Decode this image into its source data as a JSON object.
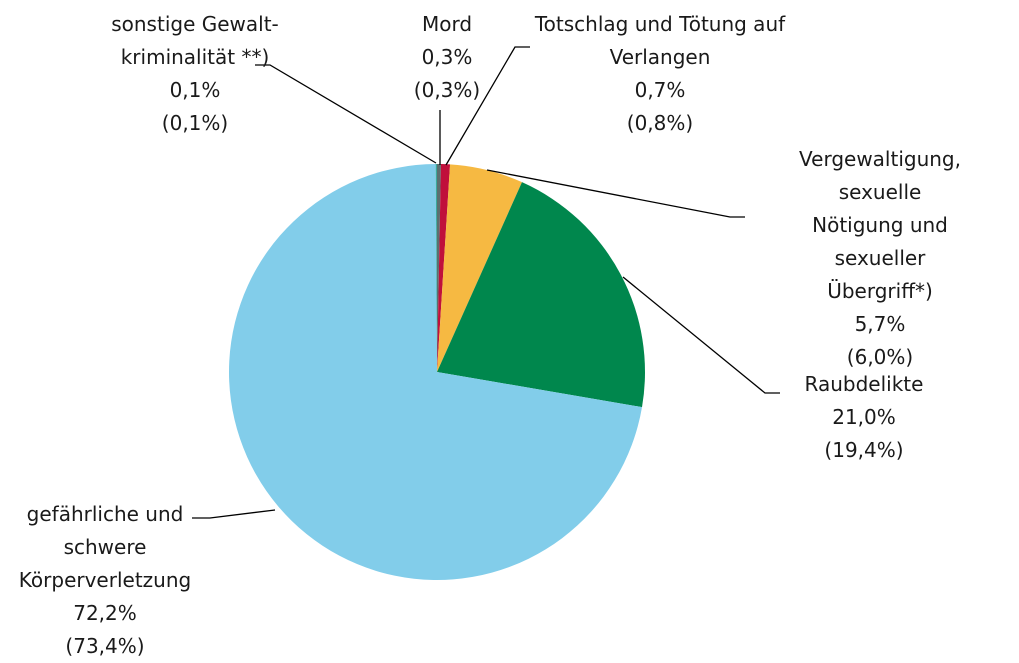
{
  "chart_data": {
    "type": "pie",
    "categories": [
      "Mord",
      "Totschlag und Tötung auf\nVerlangen",
      "Vergewaltigung,\nsexuelle Nötigung und\nsexueller Übergriff*)",
      "Raubdelikte",
      "gefährliche und\nschwere\nKörperverletzung",
      "sonstige Gewalt-\nkriminalität **)"
    ],
    "values": [
      0.3,
      0.7,
      5.7,
      21.0,
      72.2,
      0.1
    ],
    "value_labels": [
      "0,3%",
      "0,7%",
      "5,7%",
      "21,0%",
      "72,2%",
      "0,1%"
    ],
    "previous_values": [
      0.3,
      0.8,
      6.0,
      19.4,
      73.4,
      0.1
    ],
    "previous_value_labels": [
      "(0,3%)",
      "(0,8%)",
      "(6,0%)",
      "(19,4%)",
      "(73,4%)",
      "(0,1%)"
    ],
    "colors": [
      "#5b6f6f",
      "#c0103b",
      "#f6b942",
      "#00874d",
      "#82cdea",
      "#3aa89c"
    ]
  }
}
